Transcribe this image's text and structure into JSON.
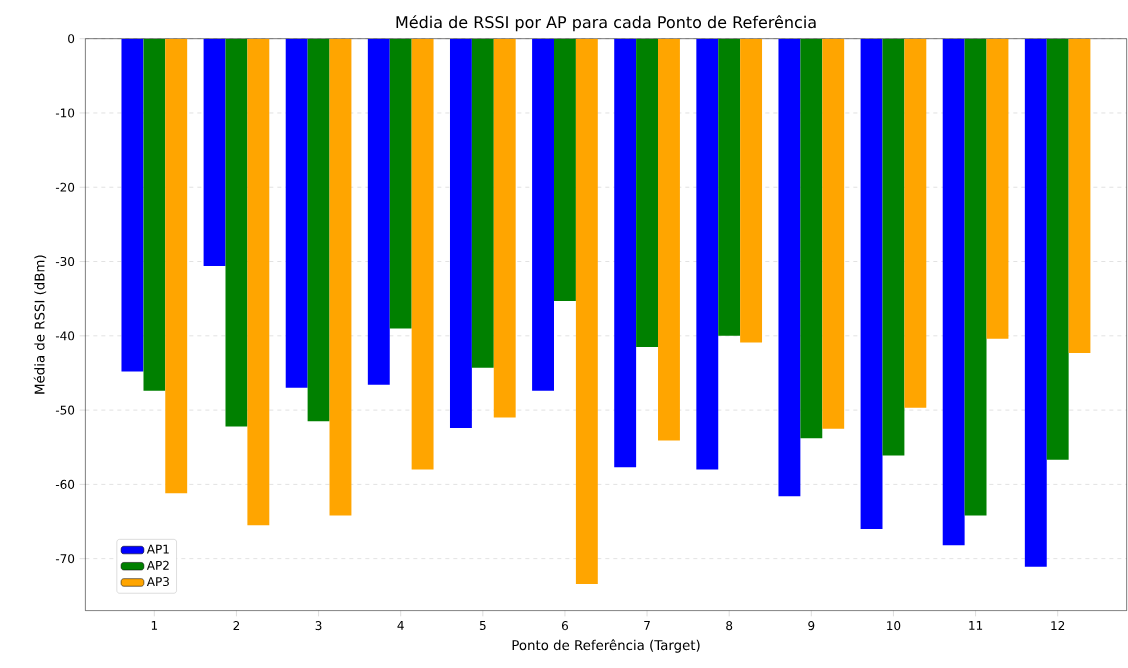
{
  "chart_data": {
    "type": "bar",
    "title": "Média de RSSI por AP para cada Ponto de Referência",
    "xlabel": "Ponto de Referência (Target)",
    "ylabel": "Média de RSSI (dBm)",
    "categories": [
      "1",
      "2",
      "3",
      "4",
      "5",
      "6",
      "7",
      "8",
      "9",
      "10",
      "11",
      "12"
    ],
    "series": [
      {
        "name": "AP1",
        "color": "#0000ff",
        "values": [
          -44.8,
          -30.6,
          -47.0,
          -46.6,
          -52.4,
          -47.4,
          -57.7,
          -58.0,
          -61.6,
          -66.0,
          -68.2,
          -71.1
        ]
      },
      {
        "name": "AP2",
        "color": "#008000",
        "values": [
          -47.4,
          -52.2,
          -51.5,
          -39.0,
          -44.3,
          -35.3,
          -41.5,
          -40.0,
          -53.8,
          -56.1,
          -64.2,
          -56.7
        ]
      },
      {
        "name": "AP3",
        "color": "#ffa500",
        "values": [
          -61.2,
          -65.5,
          -64.2,
          -58.0,
          -51.0,
          -73.4,
          -54.1,
          -40.9,
          -52.5,
          -49.7,
          -40.4,
          -42.3
        ]
      }
    ],
    "ylim": [
      -77,
      0
    ],
    "yticks": [
      -70,
      -60,
      -50,
      -40,
      -30,
      -20,
      -10,
      0
    ],
    "grid": "y",
    "legend": "bottom left"
  }
}
